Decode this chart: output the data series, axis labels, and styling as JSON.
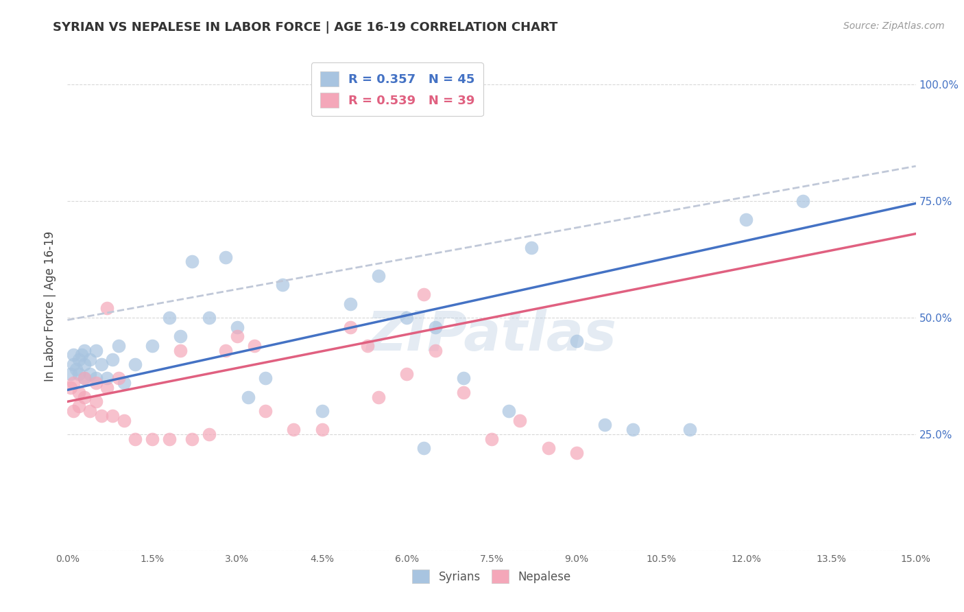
{
  "title": "SYRIAN VS NEPALESE IN LABOR FORCE | AGE 16-19 CORRELATION CHART",
  "source": "Source: ZipAtlas.com",
  "ylabel": "In Labor Force | Age 16-19",
  "syrians_R": 0.357,
  "syrians_N": 45,
  "nepalese_R": 0.539,
  "nepalese_N": 39,
  "syrian_color": "#a8c4e0",
  "nepalese_color": "#f4a7b9",
  "syrian_line_color": "#4472c4",
  "nepalese_line_color": "#e06080",
  "dashed_line_color": "#c0c8d8",
  "background_color": "#ffffff",
  "grid_color": "#d8d8d8",
  "title_color": "#333333",
  "axis_label_color": "#444444",
  "right_axis_color": "#4472c4",
  "watermark": "ZIPatlas",
  "xlim": [
    0.0,
    0.15
  ],
  "ylim": [
    0.0,
    1.05
  ],
  "syrians_x": [
    0.0005,
    0.001,
    0.001,
    0.0015,
    0.002,
    0.002,
    0.0025,
    0.003,
    0.003,
    0.003,
    0.004,
    0.004,
    0.005,
    0.005,
    0.006,
    0.007,
    0.008,
    0.009,
    0.01,
    0.012,
    0.015,
    0.018,
    0.02,
    0.022,
    0.025,
    0.028,
    0.03,
    0.032,
    0.035,
    0.038,
    0.045,
    0.05,
    0.055,
    0.06,
    0.063,
    0.065,
    0.07,
    0.078,
    0.082,
    0.09,
    0.095,
    0.1,
    0.11,
    0.12,
    0.13
  ],
  "syrians_y": [
    0.38,
    0.4,
    0.42,
    0.39,
    0.41,
    0.38,
    0.42,
    0.37,
    0.4,
    0.43,
    0.38,
    0.41,
    0.37,
    0.43,
    0.4,
    0.37,
    0.41,
    0.44,
    0.36,
    0.4,
    0.44,
    0.5,
    0.46,
    0.62,
    0.5,
    0.63,
    0.48,
    0.33,
    0.37,
    0.57,
    0.3,
    0.53,
    0.59,
    0.5,
    0.22,
    0.48,
    0.37,
    0.3,
    0.65,
    0.45,
    0.27,
    0.26,
    0.26,
    0.71,
    0.75
  ],
  "nepalese_x": [
    0.0005,
    0.001,
    0.001,
    0.002,
    0.002,
    0.003,
    0.003,
    0.004,
    0.005,
    0.005,
    0.006,
    0.007,
    0.007,
    0.008,
    0.009,
    0.01,
    0.012,
    0.015,
    0.018,
    0.02,
    0.022,
    0.025,
    0.028,
    0.03,
    0.033,
    0.035,
    0.04,
    0.045,
    0.05,
    0.053,
    0.055,
    0.06,
    0.063,
    0.065,
    0.07,
    0.075,
    0.08,
    0.085,
    0.09
  ],
  "nepalese_y": [
    0.35,
    0.3,
    0.36,
    0.31,
    0.34,
    0.33,
    0.37,
    0.3,
    0.32,
    0.36,
    0.29,
    0.52,
    0.35,
    0.29,
    0.37,
    0.28,
    0.24,
    0.24,
    0.24,
    0.43,
    0.24,
    0.25,
    0.43,
    0.46,
    0.44,
    0.3,
    0.26,
    0.26,
    0.48,
    0.44,
    0.33,
    0.38,
    0.55,
    0.43,
    0.34,
    0.24,
    0.28,
    0.22,
    0.21
  ]
}
